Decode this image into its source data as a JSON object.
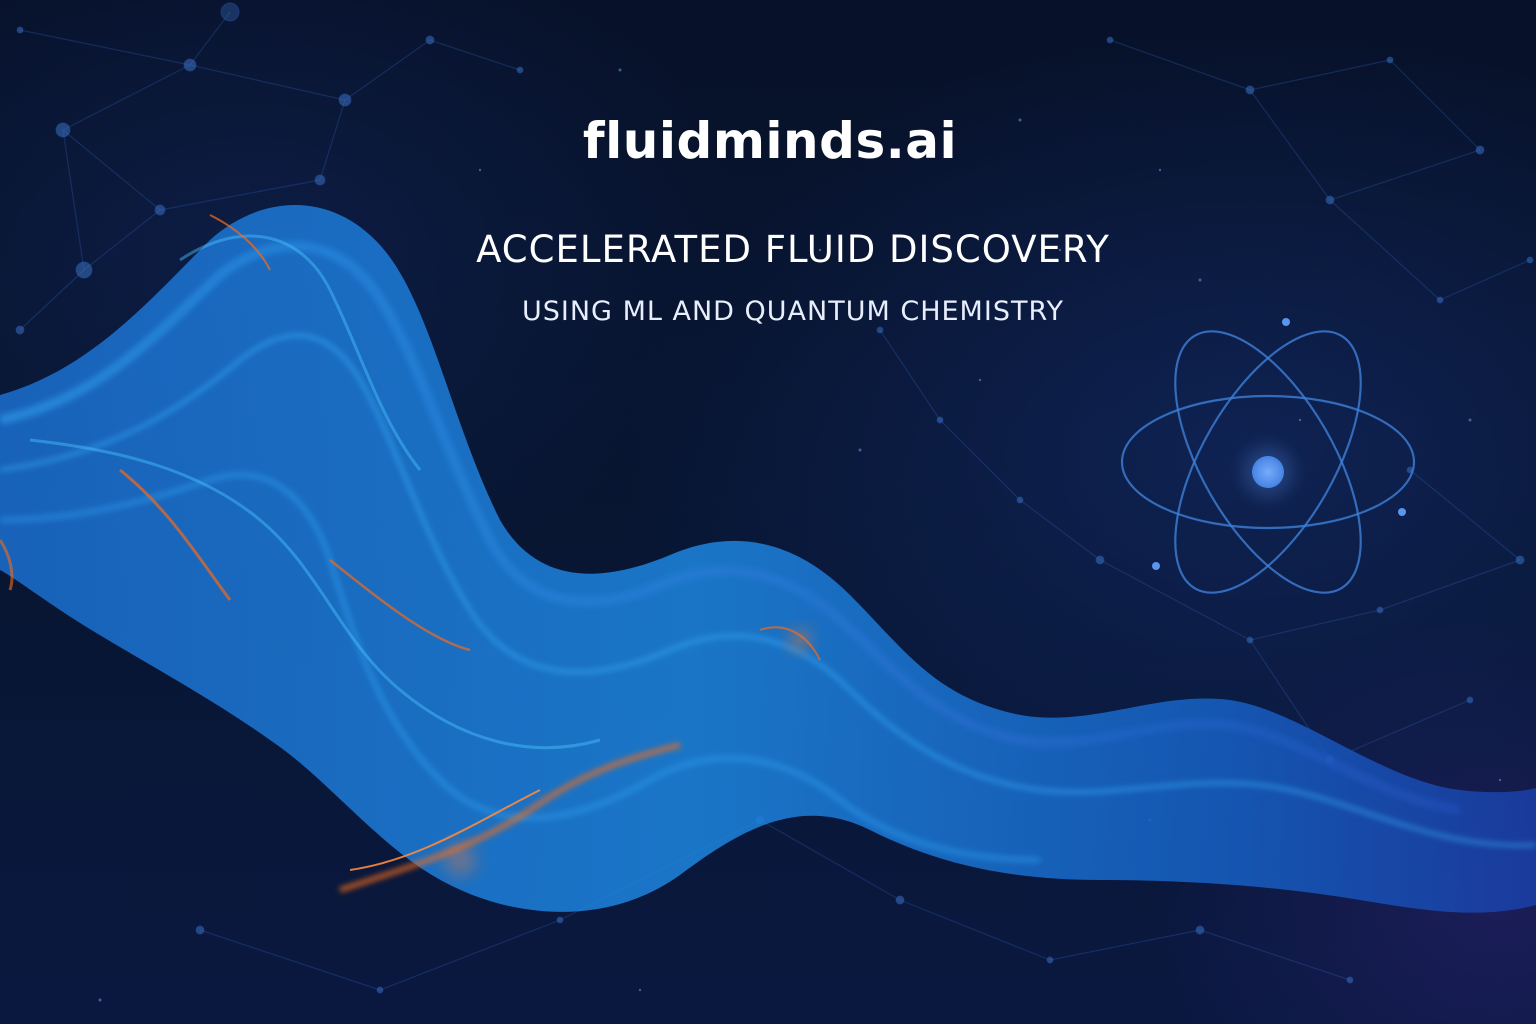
{
  "brand": {
    "name": "fluidminds.ai"
  },
  "hero": {
    "headline": "ACCELERATED FLUID DISCOVERY",
    "subheadline": "USING ML AND QUANTUM CHEMISTRY"
  },
  "colors": {
    "background": "#07112a",
    "fluid_blue": "#1e7fd6",
    "fluid_accent": "#f26a1b",
    "network": "#2a5aa8",
    "atom": "#3e7fd8",
    "text": "#ffffff"
  },
  "icons": [
    "atom-icon",
    "network-graph",
    "fluid-wave"
  ]
}
